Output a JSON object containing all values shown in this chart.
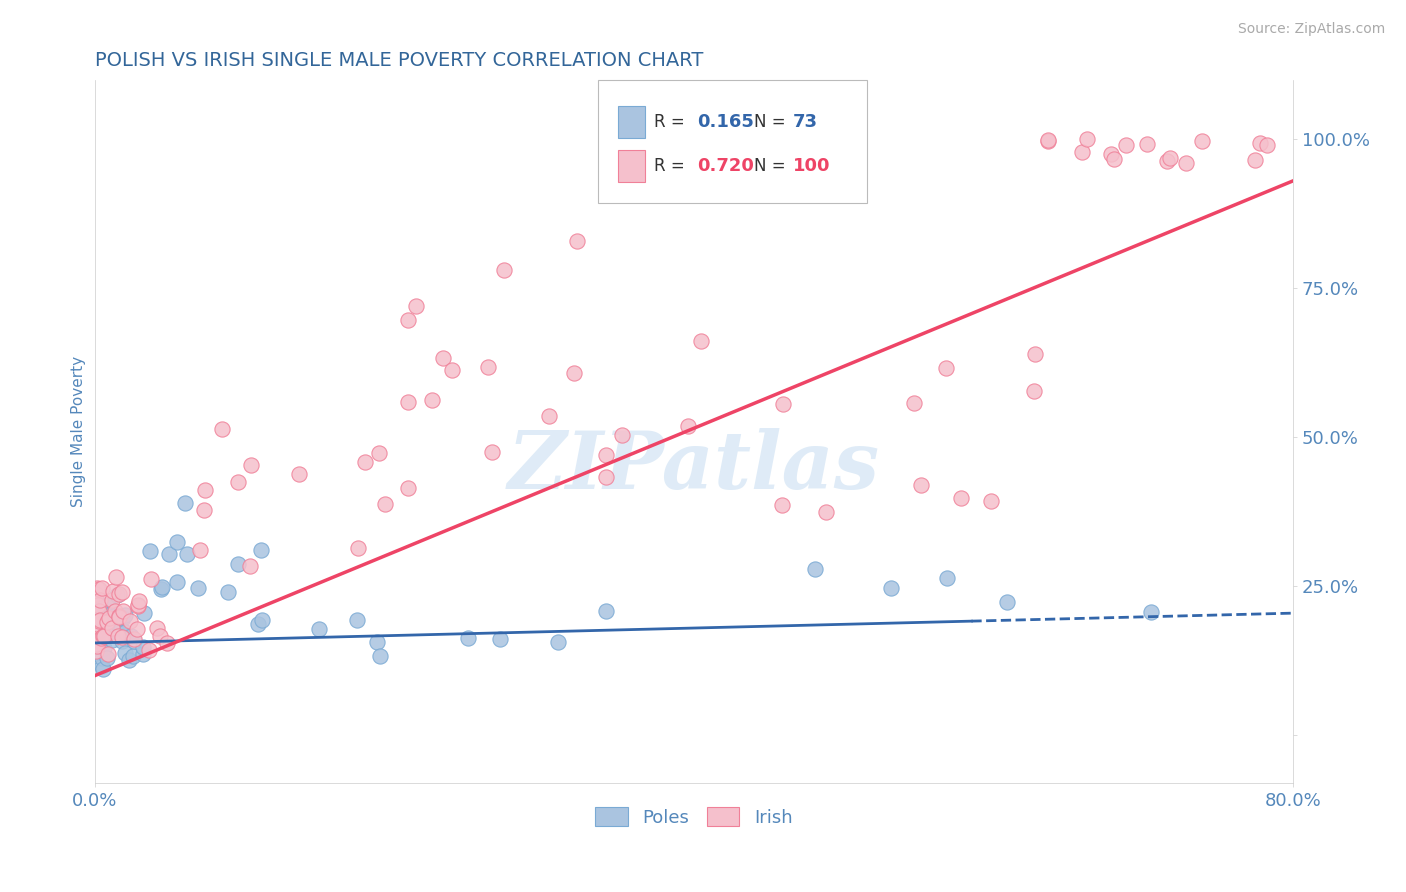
{
  "title": "POLISH VS IRISH SINGLE MALE POVERTY CORRELATION CHART",
  "source": "Source: ZipAtlas.com",
  "ylabel": "Single Male Poverty",
  "right_yticklabels": [
    "",
    "25.0%",
    "50.0%",
    "75.0%",
    "100.0%"
  ],
  "right_ytick_vals": [
    0.0,
    0.25,
    0.5,
    0.75,
    1.0
  ],
  "poles_color": "#aac4e0",
  "poles_edge_color": "#7aaad4",
  "irish_color": "#f5c0cc",
  "irish_edge_color": "#f08098",
  "poles_line_color": "#3366aa",
  "irish_line_color": "#ee4466",
  "poles_line_solid_end": 0.6,
  "watermark_text": "ZIPatlas",
  "background_color": "#ffffff",
  "grid_color": "#dddddd",
  "title_color": "#336699",
  "axis_label_color": "#5588bb",
  "legend_R_poles": "0.165",
  "legend_N_poles": "73",
  "legend_R_irish": "0.720",
  "legend_N_irish": "100",
  "xlim": [
    0.0,
    0.82
  ],
  "ylim": [
    -0.08,
    1.1
  ],
  "poles_trend_x0": 0.0,
  "poles_trend_y0": 0.155,
  "poles_trend_x1": 0.82,
  "poles_trend_y1": 0.205,
  "irish_trend_x0": 0.0,
  "irish_trend_y0": 0.1,
  "irish_trend_x1": 0.82,
  "irish_trend_y1": 0.93
}
